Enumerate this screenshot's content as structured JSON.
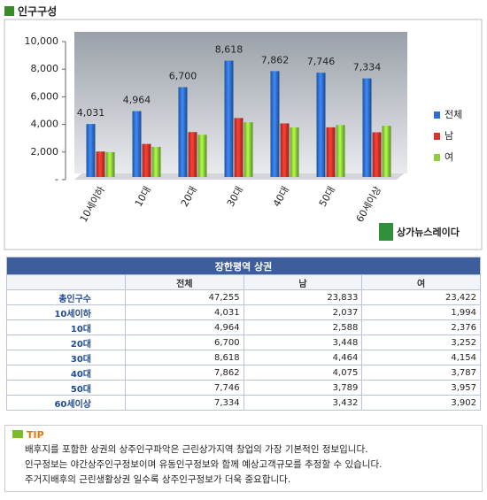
{
  "header": {
    "title": "인구구성"
  },
  "chart_data": {
    "type": "bar",
    "categories": [
      "10세이하",
      "10대",
      "20대",
      "30대",
      "40대",
      "50대",
      "60세이상"
    ],
    "series": [
      {
        "name": "전체",
        "color": "#2f6fd0",
        "values": [
          4031,
          4964,
          6700,
          8618,
          7862,
          7746,
          7334
        ],
        "value_labels": [
          "4,031",
          "4,964",
          "6,700",
          "8,618",
          "7,862",
          "7,746",
          "7,334"
        ]
      },
      {
        "name": "남",
        "color": "#d9342b",
        "values": [
          2037,
          2588,
          3448,
          4464,
          4075,
          3789,
          3432
        ]
      },
      {
        "name": "여",
        "color": "#8ccf3a",
        "values": [
          1994,
          2376,
          3252,
          4154,
          3787,
          3957,
          3902
        ]
      }
    ],
    "ylim": [
      0,
      10000
    ],
    "yticks": [
      {
        "value": 0,
        "label": "-"
      },
      {
        "value": 2000,
        "label": "2,000"
      },
      {
        "value": 4000,
        "label": "4,000"
      },
      {
        "value": 6000,
        "label": "6,000"
      },
      {
        "value": 8000,
        "label": "8,000"
      },
      {
        "value": 10000,
        "label": "10,000"
      }
    ],
    "legend": "right"
  },
  "logo": {
    "text": "상가뉴스레이다"
  },
  "table": {
    "title": "장한평역 상권",
    "columns": [
      "전체",
      "남",
      "여"
    ],
    "rows": [
      [
        "총인구수",
        "47,255",
        "23,833",
        "23,422"
      ],
      [
        "10세이하",
        "4,031",
        "2,037",
        "1,994"
      ],
      [
        "10대",
        "4,964",
        "2,588",
        "2,376"
      ],
      [
        "20대",
        "6,700",
        "3,448",
        "3,252"
      ],
      [
        "30대",
        "8,618",
        "4,464",
        "4,154"
      ],
      [
        "40대",
        "7,862",
        "4,075",
        "3,787"
      ],
      [
        "50대",
        "7,746",
        "3,789",
        "3,957"
      ],
      [
        "60세이상",
        "7,334",
        "3,432",
        "3,902"
      ]
    ]
  },
  "tip": {
    "label": "TIP",
    "lines": [
      "배후지를 포함한 상권의 상주인구파악은 근린상가지역 창업의 가장 기본적인 정보입니다.",
      "인구정보는 야간상주인구정보이며 유동인구정보와 함께 예상고객규모를 추정할 수 있습니다.",
      "주거지배후의 근린생활상권 일수록 상주인구정보가 더욱 중요합니다."
    ]
  }
}
